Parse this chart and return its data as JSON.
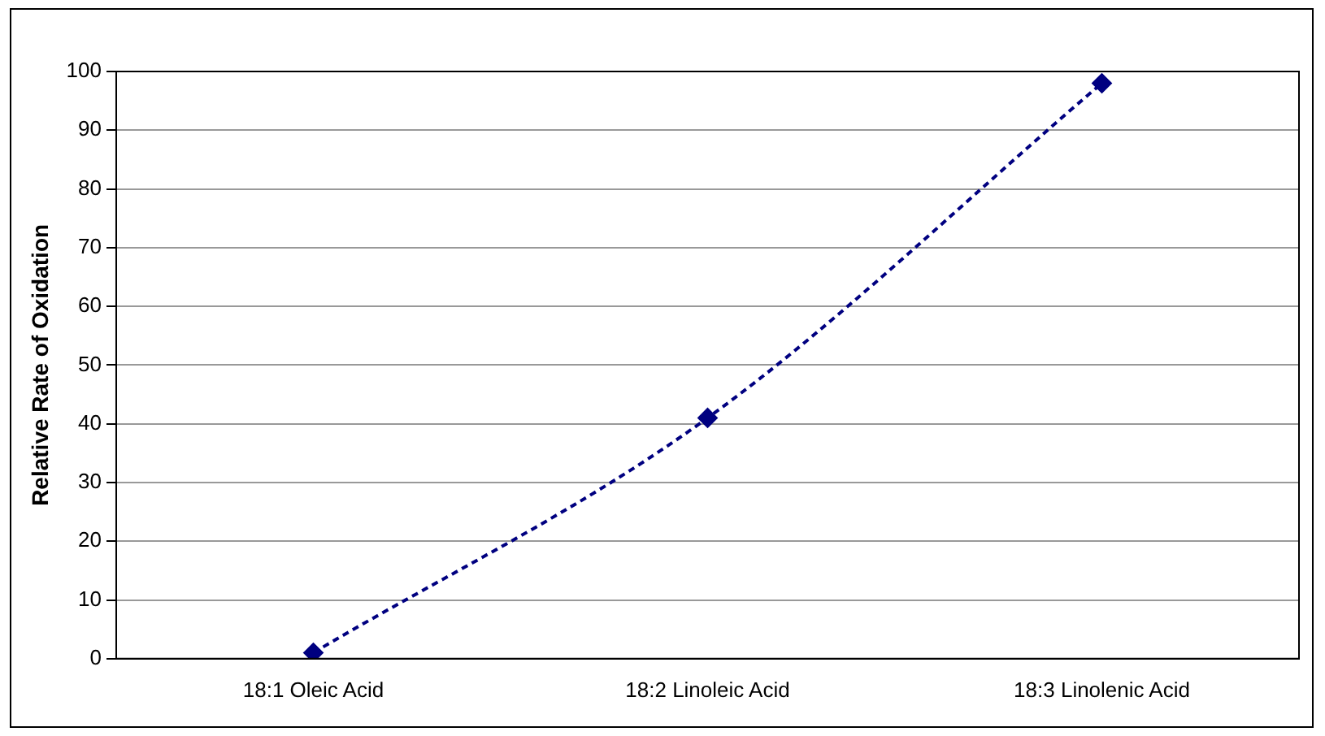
{
  "chart_data": {
    "type": "line",
    "ylabel": "Relative Rate of Oxidation",
    "categories": [
      "18:1 Oleic Acid",
      "18:2 Linoleic Acid",
      "18:3 Linolenic Acid"
    ],
    "series": [
      {
        "color": "#000080",
        "values": [
          1,
          41,
          98
        ]
      }
    ],
    "ylim": [
      0,
      100
    ],
    "yticks": [
      0,
      10,
      20,
      30,
      40,
      50,
      60,
      70,
      80,
      90,
      100
    ],
    "grid": "y",
    "marker": "diamond",
    "line_style": "dashed",
    "legend": false
  }
}
